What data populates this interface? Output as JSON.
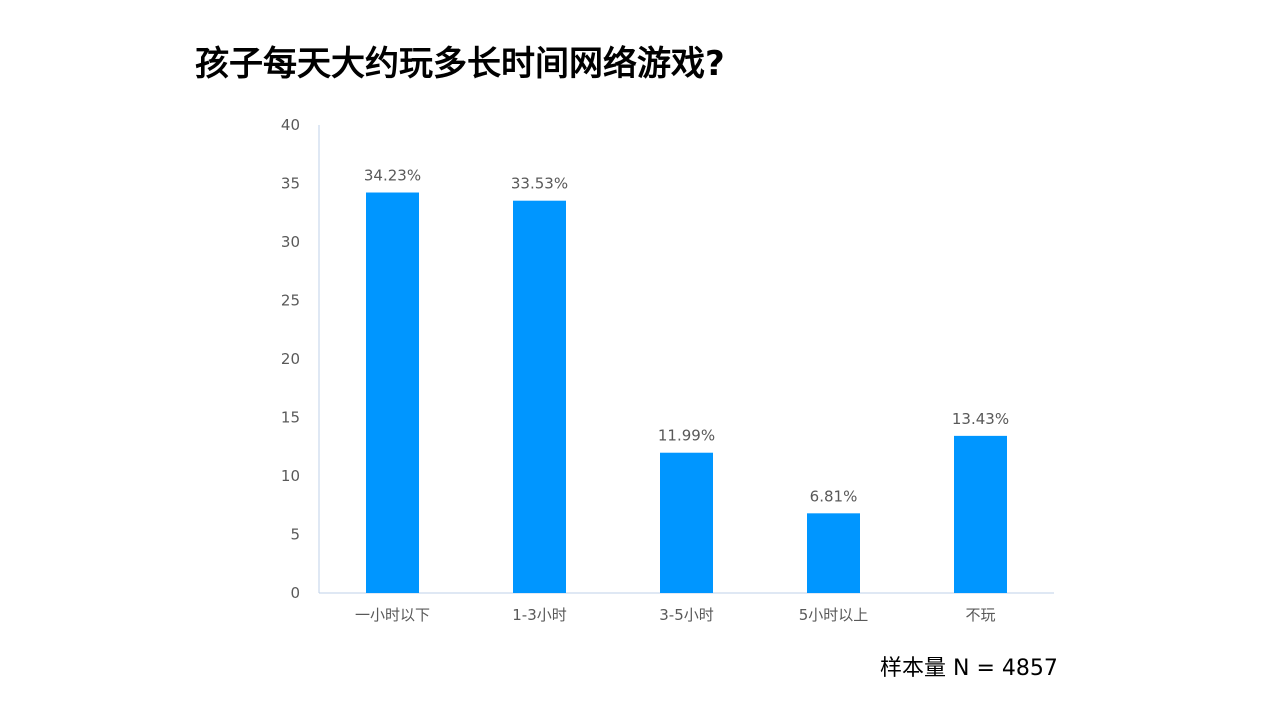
{
  "title": "孩子每天大约玩多长时间网络游戏?",
  "sample_note": "样本量 N = 4857",
  "colors": {
    "bar": "#0096FF",
    "axis": "#BFD2E8",
    "text": "#595959"
  },
  "chart_data": {
    "type": "bar",
    "title": "孩子每天大约玩多长时间网络游戏?",
    "categories": [
      "一小时以下",
      "1-3小时",
      "3-5小时",
      "5小时以上",
      "不玩"
    ],
    "values": [
      34.23,
      33.53,
      11.99,
      6.81,
      13.43
    ],
    "data_labels": [
      "34.23%",
      "33.53%",
      "11.99%",
      "6.81%",
      "13.43%"
    ],
    "ylim": [
      0,
      40
    ],
    "yticks": [
      0,
      5,
      10,
      15,
      20,
      25,
      30,
      35,
      40
    ],
    "xlabel": "",
    "ylabel": "",
    "grid": false,
    "legend": "none"
  }
}
